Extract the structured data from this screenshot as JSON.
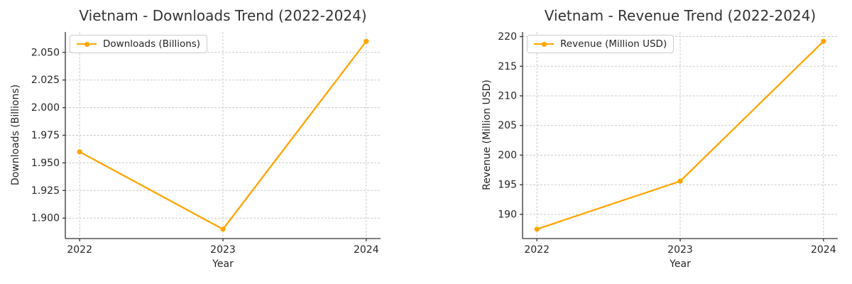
{
  "figure": {
    "background": "#ffffff",
    "accent_color": "#FFA500",
    "grid_color": "#cccccc",
    "text_color": "#333333"
  },
  "chart_data": [
    {
      "type": "line",
      "title": "Vietnam - Downloads Trend (2022-2024)",
      "xlabel": "Year",
      "ylabel": "Downloads (Billions)",
      "grid": true,
      "legend_position": "upper left",
      "categories": [
        "2022",
        "2023",
        "2024"
      ],
      "x": [
        2022,
        2023,
        2024
      ],
      "series": [
        {
          "name": "Downloads (Billions)",
          "values": [
            1.96,
            1.89,
            2.06
          ],
          "color": "#FFA500",
          "marker": "circle"
        }
      ],
      "xlim": [
        2021.9,
        2024.1
      ],
      "ylim": [
        1.8815,
        2.0685
      ],
      "yticks": [
        1.9,
        1.925,
        1.95,
        1.975,
        2.0,
        2.025,
        2.05
      ],
      "ytick_labels": [
        "1.900",
        "1.925",
        "1.950",
        "1.975",
        "2.000",
        "2.025",
        "2.050"
      ]
    },
    {
      "type": "line",
      "title": "Vietnam - Revenue Trend (2022-2024)",
      "xlabel": "Year",
      "ylabel": "Revenue (Million USD)",
      "grid": true,
      "legend_position": "upper left",
      "categories": [
        "2022",
        "2023",
        "2024"
      ],
      "x": [
        2022,
        2023,
        2024
      ],
      "series": [
        {
          "name": "Revenue (Million USD)",
          "values": [
            187.5,
            195.6,
            219.2
          ],
          "color": "#FFA500",
          "marker": "circle"
        }
      ],
      "xlim": [
        2021.9,
        2024.1
      ],
      "ylim": [
        185.915,
        220.785
      ],
      "yticks": [
        190,
        195,
        200,
        205,
        210,
        215,
        220
      ],
      "ytick_labels": [
        "190",
        "195",
        "200",
        "205",
        "210",
        "215",
        "220"
      ]
    }
  ]
}
